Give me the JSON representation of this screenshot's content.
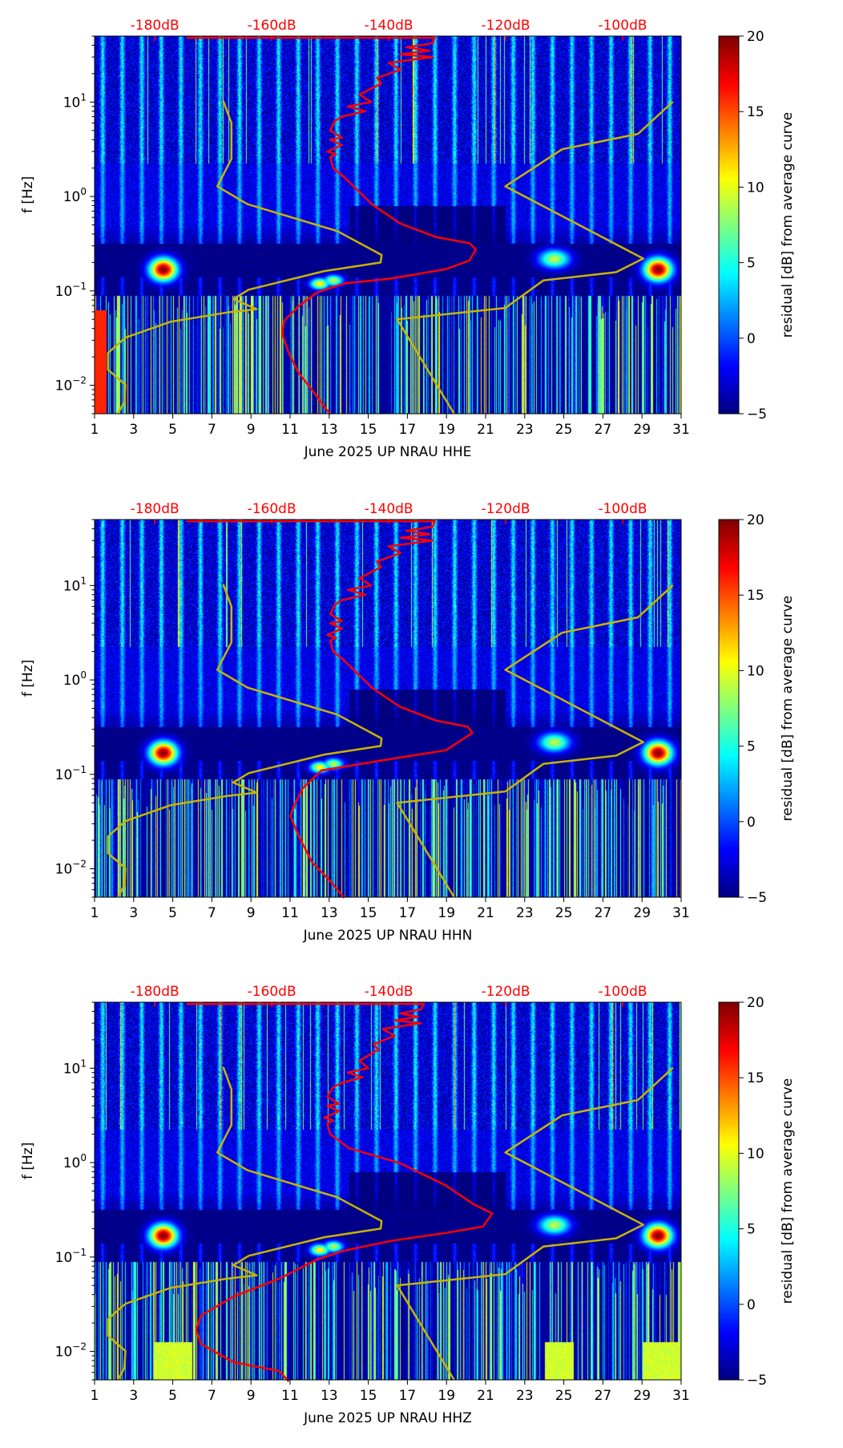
{
  "chart_data": [
    {
      "type": "heatmap",
      "title": "",
      "xlabel": "June 2025 UP NRAU  HHE",
      "ylabel": "f [Hz]",
      "colorbar_label": "residual [dB] from average curve",
      "xlim": [
        1,
        31
      ],
      "ylim": [
        0.005,
        50
      ],
      "yscale": "log",
      "x_ticks": [
        "1",
        "3",
        "5",
        "7",
        "9",
        "11",
        "13",
        "15",
        "17",
        "19",
        "21",
        "23",
        "25",
        "27",
        "29",
        "31"
      ],
      "y_ticks": [
        {
          "base": "10",
          "exp": "−2",
          "value": 0.01
        },
        {
          "base": "10",
          "exp": "−1",
          "value": 0.1
        },
        {
          "base": "10",
          "exp": "0",
          "value": 1
        },
        {
          "base": "10",
          "exp": "1",
          "value": 10
        }
      ],
      "colorbar_range": [
        -5,
        20
      ],
      "colorbar_ticks": [
        "−5",
        "0",
        "5",
        "10",
        "15",
        "20"
      ],
      "top_axis": {
        "labels": [
          "-180dB",
          "-160dB",
          "-140dB",
          "-120dB",
          "-100dB"
        ],
        "values": [
          -180,
          -160,
          -140,
          -120,
          -100
        ],
        "lim": [
          -190.3,
          -90
        ],
        "color": "#ff0000"
      },
      "red_curve_db_vs_hz": [
        [
          -174.6,
          48
        ],
        [
          -132.1,
          48
        ],
        [
          -132.5,
          42
        ],
        [
          -137,
          38
        ],
        [
          -133,
          35
        ],
        [
          -138,
          32
        ],
        [
          -132.5,
          30
        ],
        [
          -140,
          26
        ],
        [
          -138,
          22
        ],
        [
          -142,
          18
        ],
        [
          -141.3,
          15.7
        ],
        [
          -145,
          12
        ],
        [
          -143,
          10
        ],
        [
          -147,
          9
        ],
        [
          -144,
          8
        ],
        [
          -148,
          7
        ],
        [
          -149.2,
          6.3
        ],
        [
          -150,
          5
        ],
        [
          -148,
          4.2
        ],
        [
          -150,
          4
        ],
        [
          -148,
          3.5
        ],
        [
          -150.5,
          3
        ],
        [
          -149,
          2.8
        ],
        [
          -150,
          2.6
        ],
        [
          -149.5,
          2.0
        ],
        [
          -147.6,
          1.6
        ],
        [
          -142.8,
          0.82
        ],
        [
          -138.1,
          0.52
        ],
        [
          -131.8,
          0.37
        ],
        [
          -126.2,
          0.32
        ],
        [
          -125.1,
          0.275
        ],
        [
          -126.2,
          0.21
        ],
        [
          -130.2,
          0.17
        ],
        [
          -139.7,
          0.135
        ],
        [
          -147.6,
          0.12
        ],
        [
          -152.3,
          0.096
        ],
        [
          -155.5,
          0.068
        ],
        [
          -157.9,
          0.048
        ],
        [
          -158.2,
          0.035
        ],
        [
          -157.1,
          0.022
        ],
        [
          -155.5,
          0.0138
        ],
        [
          -153.1,
          0.0089
        ],
        [
          -150,
          0.0049
        ]
      ]
    },
    {
      "type": "heatmap",
      "title": "",
      "xlabel": "June 2025 UP NRAU  HHN",
      "ylabel": "f [Hz]",
      "colorbar_label": "residual [dB] from average curve",
      "xlim": [
        1,
        31
      ],
      "ylim": [
        0.005,
        50
      ],
      "yscale": "log",
      "x_ticks": [
        "1",
        "3",
        "5",
        "7",
        "9",
        "11",
        "13",
        "15",
        "17",
        "19",
        "21",
        "23",
        "25",
        "27",
        "29",
        "31"
      ],
      "y_ticks": [
        {
          "base": "10",
          "exp": "−2",
          "value": 0.01
        },
        {
          "base": "10",
          "exp": "−1",
          "value": 0.1
        },
        {
          "base": "10",
          "exp": "0",
          "value": 1
        },
        {
          "base": "10",
          "exp": "1",
          "value": 10
        }
      ],
      "colorbar_range": [
        -5,
        20
      ],
      "colorbar_ticks": [
        "−5",
        "0",
        "5",
        "10",
        "15",
        "20"
      ],
      "top_axis": {
        "labels": [
          "-180dB",
          "-160dB",
          "-140dB",
          "-120dB",
          "-100dB"
        ],
        "values": [
          -180,
          -160,
          -140,
          -120,
          -100
        ],
        "lim": [
          -190.3,
          -90
        ],
        "color": "#ff0000"
      },
      "red_curve_db_vs_hz": [
        [
          -174.6,
          48
        ],
        [
          -132.1,
          48
        ],
        [
          -132.5,
          42
        ],
        [
          -137,
          38
        ],
        [
          -133,
          35
        ],
        [
          -138,
          32
        ],
        [
          -132.5,
          30
        ],
        [
          -140,
          26
        ],
        [
          -138,
          22
        ],
        [
          -142,
          18
        ],
        [
          -141.3,
          15.7
        ],
        [
          -145,
          12
        ],
        [
          -143,
          10
        ],
        [
          -147,
          9
        ],
        [
          -144,
          8
        ],
        [
          -148,
          7
        ],
        [
          -149.2,
          6.3
        ],
        [
          -150,
          5
        ],
        [
          -148,
          4.2
        ],
        [
          -150,
          4
        ],
        [
          -148,
          3.5
        ],
        [
          -150.5,
          3
        ],
        [
          -149,
          2.8
        ],
        [
          -150,
          2.6
        ],
        [
          -149.5,
          2.0
        ],
        [
          -147.6,
          1.6
        ],
        [
          -142.8,
          0.82
        ],
        [
          -138.1,
          0.52
        ],
        [
          -131.8,
          0.37
        ],
        [
          -126.5,
          0.32
        ],
        [
          -125.7,
          0.275
        ],
        [
          -130.2,
          0.18
        ],
        [
          -141.3,
          0.14
        ],
        [
          -151.5,
          0.11
        ],
        [
          -154.7,
          0.071
        ],
        [
          -156.3,
          0.045
        ],
        [
          -156.8,
          0.036
        ],
        [
          -155.5,
          0.023
        ],
        [
          -153.1,
          0.0117
        ],
        [
          -150,
          0.0074
        ],
        [
          -147.6,
          0.0049
        ]
      ]
    },
    {
      "type": "heatmap",
      "title": "",
      "xlabel": "June 2025 UP NRAU  HHZ",
      "ylabel": "f [Hz]",
      "colorbar_label": "residual [dB] from average curve",
      "xlim": [
        1,
        31
      ],
      "ylim": [
        0.005,
        50
      ],
      "yscale": "log",
      "x_ticks": [
        "1",
        "3",
        "5",
        "7",
        "9",
        "11",
        "13",
        "15",
        "17",
        "19",
        "21",
        "23",
        "25",
        "27",
        "29",
        "31"
      ],
      "y_ticks": [
        {
          "base": "10",
          "exp": "−2",
          "value": 0.01
        },
        {
          "base": "10",
          "exp": "−1",
          "value": 0.1
        },
        {
          "base": "10",
          "exp": "0",
          "value": 1
        },
        {
          "base": "10",
          "exp": "1",
          "value": 10
        }
      ],
      "colorbar_range": [
        -5,
        20
      ],
      "colorbar_ticks": [
        "−5",
        "0",
        "5",
        "10",
        "15",
        "20"
      ],
      "top_axis": {
        "labels": [
          "-180dB",
          "-160dB",
          "-140dB",
          "-120dB",
          "-100dB"
        ],
        "values": [
          -180,
          -160,
          -140,
          -120,
          -100
        ],
        "lim": [
          -190.3,
          -90
        ],
        "color": "#ff0000"
      },
      "red_curve_db_vs_hz": [
        [
          -174.6,
          48
        ],
        [
          -134,
          48
        ],
        [
          -134.5,
          42
        ],
        [
          -138,
          38
        ],
        [
          -135,
          35
        ],
        [
          -139,
          32
        ],
        [
          -134.5,
          30
        ],
        [
          -141,
          26
        ],
        [
          -139,
          22
        ],
        [
          -142.5,
          18
        ],
        [
          -141.8,
          15.7
        ],
        [
          -145,
          12
        ],
        [
          -143.5,
          10
        ],
        [
          -147,
          9
        ],
        [
          -144.5,
          8
        ],
        [
          -148,
          7
        ],
        [
          -149.5,
          6.3
        ],
        [
          -150.5,
          5
        ],
        [
          -148.5,
          4.2
        ],
        [
          -150.5,
          4
        ],
        [
          -148.5,
          3.5
        ],
        [
          -151,
          3
        ],
        [
          -149.5,
          2.8
        ],
        [
          -150.5,
          2.6
        ],
        [
          -150,
          2.0
        ],
        [
          -146.8,
          1.42
        ],
        [
          -138.1,
          0.99
        ],
        [
          -130.2,
          0.57
        ],
        [
          -125.4,
          0.36
        ],
        [
          -122.3,
          0.29
        ],
        [
          -123.9,
          0.21
        ],
        [
          -130.2,
          0.18
        ],
        [
          -139.7,
          0.148
        ],
        [
          -147.6,
          0.117
        ],
        [
          -152.3,
          0.094
        ],
        [
          -158.7,
          0.059
        ],
        [
          -166.6,
          0.038
        ],
        [
          -172.1,
          0.024
        ],
        [
          -172.9,
          0.017
        ],
        [
          -172.1,
          0.012
        ],
        [
          -166.6,
          0.0077
        ],
        [
          -158.7,
          0.0062
        ],
        [
          -157.1,
          0.0048
        ]
      ]
    }
  ],
  "yellow_curves_day_vs_hz": {
    "color": "#c8b400",
    "left": [
      [
        7.58,
        10.3
      ],
      [
        8.0,
        6.0
      ],
      [
        8.0,
        2.5
      ],
      [
        7.28,
        1.28
      ],
      [
        8.82,
        0.83
      ],
      [
        13.41,
        0.43
      ],
      [
        15.68,
        0.24
      ],
      [
        15.63,
        0.2
      ],
      [
        12.75,
        0.162
      ],
      [
        8.88,
        0.103
      ],
      [
        8.1,
        0.082
      ],
      [
        9.29,
        0.064
      ],
      [
        7.77,
        0.059
      ],
      [
        4.87,
        0.047
      ],
      [
        2.58,
        0.032
      ],
      [
        1.69,
        0.022
      ],
      [
        1.69,
        0.0146
      ],
      [
        2.58,
        0.0101
      ],
      [
        2.52,
        0.0066
      ],
      [
        2.19,
        0.005
      ]
    ],
    "right": [
      [
        30.58,
        10.1
      ],
      [
        28.79,
        4.6
      ],
      [
        24.91,
        3.16
      ],
      [
        22.01,
        1.28
      ],
      [
        29.06,
        0.22
      ],
      [
        27.68,
        0.158
      ],
      [
        23.95,
        0.129
      ],
      [
        22.01,
        0.066
      ],
      [
        16.48,
        0.05
      ],
      [
        19.39,
        0.005
      ]
    ]
  },
  "colors": {
    "red_curve": "#ff0000",
    "yellow_curve": "#c8b400"
  }
}
